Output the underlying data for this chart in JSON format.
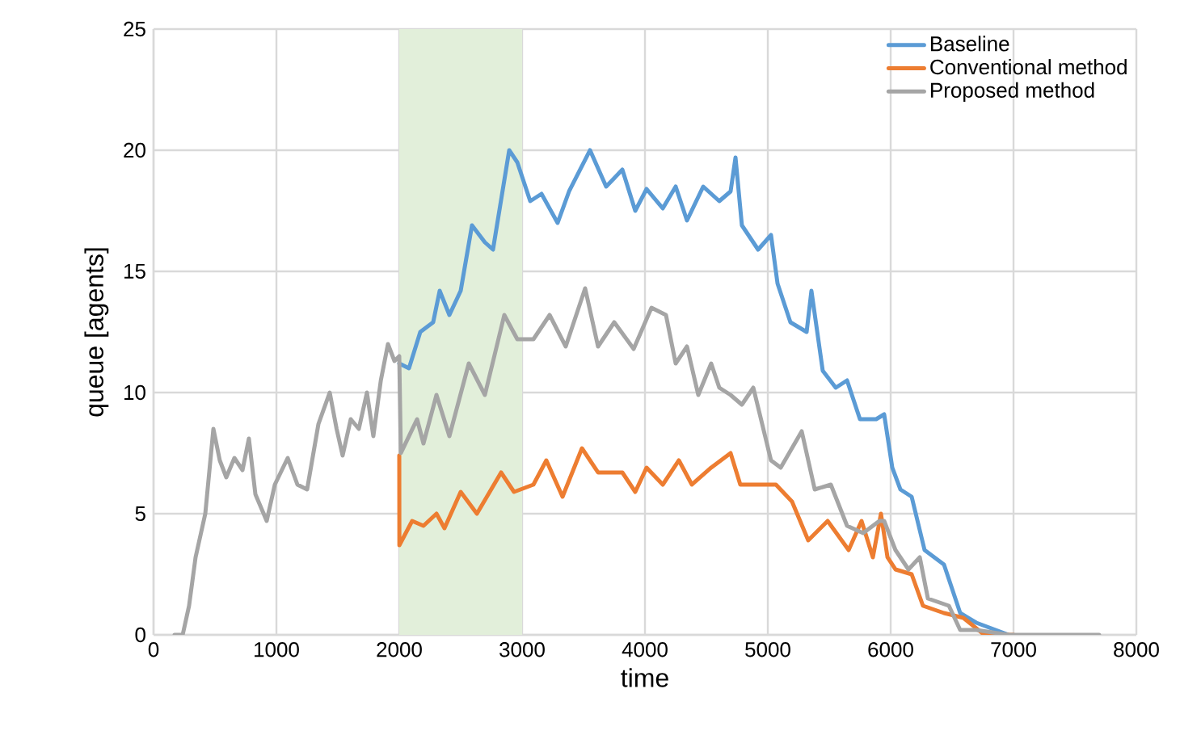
{
  "chart_data": {
    "type": "line",
    "xlabel": "time",
    "ylabel": "queue [agents]",
    "xlim": [
      0,
      8000
    ],
    "xticks": [
      0,
      1000,
      2000,
      3000,
      4000,
      5000,
      6000,
      7000,
      8000
    ],
    "ylim": [
      0,
      25
    ],
    "yticks": [
      0,
      5,
      10,
      15,
      20,
      25
    ],
    "grid": true,
    "legend": "top right",
    "marker": "none",
    "line_style": "solid",
    "bands": [
      {
        "axis": "x",
        "from": 2000,
        "to": 3000,
        "color": "#e2efda"
      }
    ],
    "series": [
      {
        "name": "Baseline",
        "color": "#5b9bd5",
        "x": [
          2000,
          2079,
          2171,
          2276,
          2329,
          2408,
          2500,
          2592,
          2697,
          2763,
          2895,
          2961,
          3066,
          3158,
          3289,
          3382,
          3553,
          3684,
          3816,
          3921,
          4013,
          4145,
          4250,
          4342,
          4474,
          4605,
          4697,
          4737,
          4789,
          4921,
          5026,
          5079,
          5184,
          5316,
          5355,
          5447,
          5553,
          5645,
          5750,
          5882,
          5947,
          6013,
          6079,
          6171,
          6276,
          6434,
          6566,
          6697,
          6961
        ],
        "values": [
          11.2,
          11,
          12.5,
          12.9,
          14.2,
          13.2,
          14.2,
          16.9,
          16.2,
          15.9,
          20,
          19.5,
          17.9,
          18.2,
          17,
          18.3,
          20,
          18.5,
          19.2,
          17.5,
          18.4,
          17.6,
          18.5,
          17.1,
          18.5,
          17.9,
          18.3,
          19.7,
          16.9,
          15.9,
          16.5,
          14.5,
          12.9,
          12.5,
          14.2,
          10.9,
          10.2,
          10.5,
          8.9,
          8.9,
          9.1,
          6.9,
          6,
          5.7,
          3.5,
          2.9,
          0.9,
          0.5,
          0
        ]
      },
      {
        "name": "Conventional method",
        "color": "#ed7d31",
        "x": [
          2000,
          2001,
          2105,
          2197,
          2303,
          2368,
          2500,
          2632,
          2829,
          2934,
          3092,
          3197,
          3329,
          3487,
          3618,
          3816,
          3921,
          4013,
          4145,
          4276,
          4382,
          4539,
          4697,
          4776,
          5000,
          5066,
          5197,
          5329,
          5487,
          5658,
          5763,
          5855,
          5921,
          5974,
          6039,
          6171,
          6263,
          6434,
          6592,
          6763,
          7000
        ],
        "values": [
          7.4,
          3.7,
          4.7,
          4.5,
          5,
          4.4,
          5.9,
          5,
          6.7,
          5.9,
          6.2,
          7.2,
          5.7,
          7.7,
          6.7,
          6.7,
          5.9,
          6.9,
          6.2,
          7.2,
          6.2,
          6.9,
          7.5,
          6.2,
          6.2,
          6.2,
          5.5,
          3.9,
          4.7,
          3.5,
          4.7,
          3.2,
          5,
          3.2,
          2.7,
          2.5,
          1.2,
          0.9,
          0.7,
          0,
          0
        ]
      },
      {
        "name": "Proposed method",
        "color": "#a5a5a5",
        "x": [
          171,
          237,
          289,
          342,
          421,
          487,
          539,
          592,
          658,
          724,
          776,
          829,
          921,
          987,
          1092,
          1171,
          1250,
          1342,
          1434,
          1490,
          1539,
          1605,
          1671,
          1737,
          1789,
          1850,
          1908,
          1961,
          2000,
          2013,
          2145,
          2197,
          2303,
          2408,
          2566,
          2697,
          2855,
          2961,
          3092,
          3224,
          3355,
          3513,
          3618,
          3750,
          3908,
          4053,
          4171,
          4250,
          4342,
          4434,
          4539,
          4605,
          4697,
          4789,
          4882,
          5026,
          5105,
          5276,
          5382,
          5513,
          5645,
          5776,
          5908,
          5947,
          6039,
          6145,
          6237,
          6303,
          6474,
          6566,
          6697,
          6961,
          7697
        ],
        "values": [
          0,
          0,
          1.2,
          3.2,
          5,
          8.5,
          7.2,
          6.5,
          7.3,
          6.8,
          8.1,
          5.8,
          4.7,
          6.2,
          7.3,
          6.2,
          6,
          8.7,
          10,
          8.5,
          7.4,
          8.9,
          8.5,
          10,
          8.2,
          10.5,
          12,
          11.3,
          11.5,
          7.5,
          8.9,
          7.9,
          9.9,
          8.2,
          11.2,
          9.9,
          13.2,
          12.2,
          12.2,
          13.2,
          11.9,
          14.3,
          11.9,
          12.9,
          11.8,
          13.5,
          13.2,
          11.2,
          11.9,
          9.9,
          11.2,
          10.2,
          9.9,
          9.5,
          10.2,
          7.2,
          6.9,
          8.4,
          6,
          6.2,
          4.5,
          4.2,
          4.7,
          4.7,
          3.5,
          2.7,
          3.2,
          1.5,
          1.2,
          0.2,
          0.2,
          0,
          0
        ]
      }
    ]
  }
}
